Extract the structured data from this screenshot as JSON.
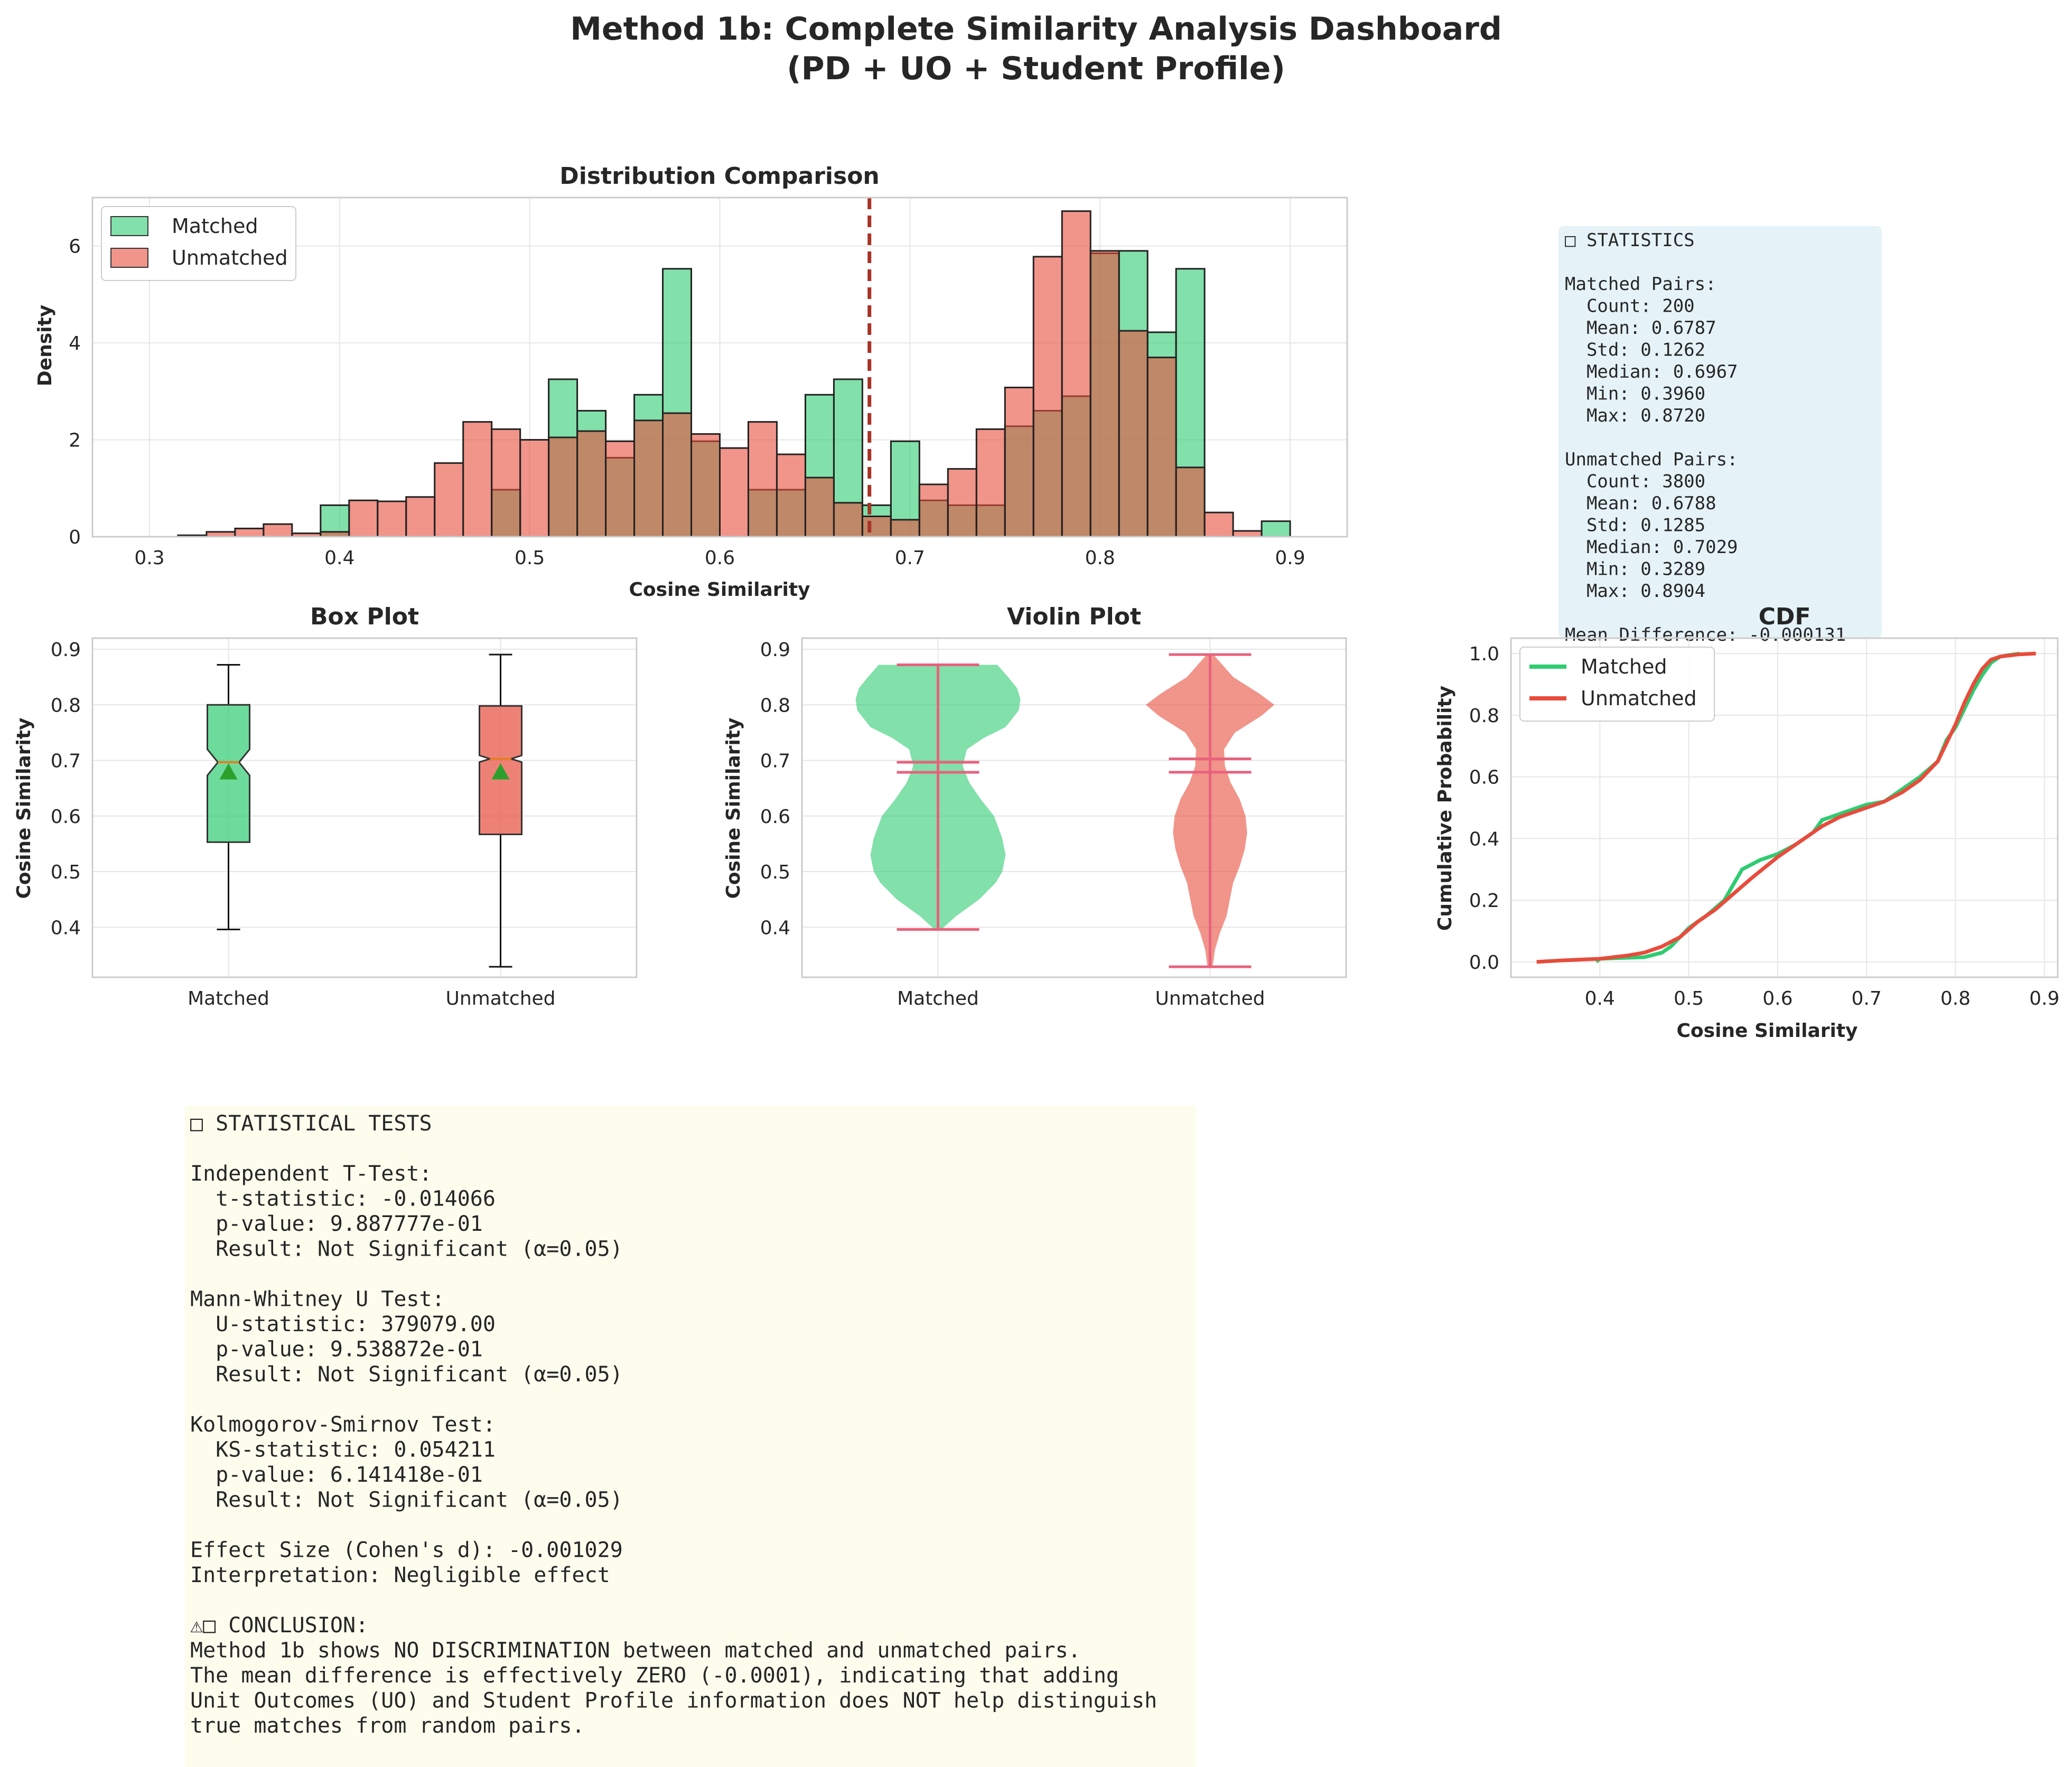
{
  "title_lines": [
    "Method 1b: Complete Similarity Analysis Dashboard",
    "(PD + UO + Student Profile)"
  ],
  "colors": {
    "matched": "#2ecc71",
    "unmatched": "#e74c3c",
    "mean_line": "#a93226",
    "violin_lines": "#e8627d",
    "box_mean_marker": "#2ca02c",
    "box_median": "#e67e22",
    "stats_bg": "#e5f3f8",
    "tests_bg": "#fdfdee"
  },
  "statistics_box": {
    "lines": [
      "□ STATISTICS",
      "",
      "Matched Pairs:",
      "  Count: 200",
      "  Mean: 0.6787",
      "  Std: 0.1262",
      "  Median: 0.6967",
      "  Min: 0.3960",
      "  Max: 0.8720",
      "",
      "Unmatched Pairs:",
      "  Count: 3800",
      "  Mean: 0.6788",
      "  Std: 0.1285",
      "  Median: 0.7029",
      "  Min: 0.3289",
      "  Max: 0.8904",
      "",
      "Mean Difference: -0.000131"
    ]
  },
  "tests_box": {
    "lines": [
      "□ STATISTICAL TESTS",
      "",
      "Independent T-Test:",
      "  t-statistic: -0.014066",
      "  p-value: 9.887777e-01",
      "  Result: Not Significant (α=0.05)",
      "",
      "Mann-Whitney U Test:",
      "  U-statistic: 379079.00",
      "  p-value: 9.538872e-01",
      "  Result: Not Significant (α=0.05)",
      "",
      "Kolmogorov-Smirnov Test:",
      "  KS-statistic: 0.054211",
      "  p-value: 6.141418e-01",
      "  Result: Not Significant (α=0.05)",
      "",
      "Effect Size (Cohen's d): -0.001029",
      "Interpretation: Negligible effect",
      "",
      "⚠□ CONCLUSION:",
      "Method 1b shows NO DISCRIMINATION between matched and unmatched pairs.",
      "The mean difference is effectively ZERO (-0.0001), indicating that adding",
      "Unit Outcomes (UO) and Student Profile information does NOT help distinguish",
      "true matches from random pairs."
    ]
  },
  "chart_data": [
    {
      "type": "histogram",
      "title": "Distribution Comparison",
      "xlabel": "Cosine Similarity",
      "ylabel": "Density",
      "xlim": [
        0.27,
        0.93
      ],
      "ylim": [
        0,
        7.0
      ],
      "xticks": [
        0.3,
        0.4,
        0.5,
        0.6,
        0.7,
        0.8,
        0.9
      ],
      "xtick_labels": [
        "0.3",
        "0.4",
        "0.5",
        "0.6",
        "0.7",
        "0.8",
        "0.9"
      ],
      "yticks": [
        0,
        2,
        4,
        6
      ],
      "ytick_labels": [
        "0",
        "2",
        "4",
        "6"
      ],
      "legend_position": "upper-left",
      "bin_start": 0.3,
      "bin_width": 0.015,
      "series": [
        {
          "name": "Matched",
          "values": [
            0,
            0,
            0,
            0,
            0,
            0,
            0.65,
            0,
            0,
            0,
            0,
            0,
            0.97,
            0,
            3.25,
            2.6,
            1.63,
            2.93,
            5.53,
            1.97,
            0,
            0.97,
            0.97,
            2.93,
            3.25,
            0.65,
            1.97,
            0.75,
            0.65,
            0.65,
            2.28,
            2.6,
            2.9,
            5.85,
            5.9,
            4.22,
            5.53,
            0,
            0,
            0.32,
            0
          ]
        },
        {
          "name": "Unmatched",
          "values": [
            0,
            0.03,
            0.1,
            0.17,
            0.26,
            0.07,
            0.1,
            0.75,
            0.73,
            0.82,
            1.52,
            2.37,
            2.22,
            2.0,
            2.05,
            2.18,
            1.97,
            2.4,
            2.55,
            2.12,
            1.83,
            2.37,
            1.7,
            1.22,
            0.7,
            0.42,
            0.35,
            1.08,
            1.4,
            2.22,
            3.08,
            5.78,
            6.72,
            5.9,
            4.25,
            3.7,
            1.43,
            0.5,
            0.12,
            0,
            0
          ]
        }
      ],
      "mean_line_x": 0.6787
    },
    {
      "type": "box",
      "title": "Box Plot",
      "ylabel": "Cosine Similarity",
      "ylim": [
        0.31,
        0.92
      ],
      "yticks": [
        0.4,
        0.5,
        0.6,
        0.7,
        0.8,
        0.9
      ],
      "ytick_labels": [
        "0.4",
        "0.5",
        "0.6",
        "0.7",
        "0.8",
        "0.9"
      ],
      "categories": [
        "Matched",
        "Unmatched"
      ],
      "boxes": [
        {
          "q1": 0.553,
          "median": 0.6967,
          "q3": 0.8,
          "whisker_low": 0.396,
          "whisker_high": 0.872,
          "mean": 0.6787,
          "notch_low": 0.673,
          "notch_high": 0.72
        },
        {
          "q1": 0.567,
          "median": 0.7029,
          "q3": 0.798,
          "whisker_low": 0.3289,
          "whisker_high": 0.8904,
          "mean": 0.6788,
          "notch_low": 0.697,
          "notch_high": 0.709
        }
      ]
    },
    {
      "type": "violin",
      "title": "Violin Plot",
      "ylabel": "Cosine Similarity",
      "ylim": [
        0.31,
        0.92
      ],
      "yticks": [
        0.4,
        0.5,
        0.6,
        0.7,
        0.8,
        0.9
      ],
      "ytick_labels": [
        "0.4",
        "0.5",
        "0.6",
        "0.7",
        "0.8",
        "0.9"
      ],
      "categories": [
        "Matched",
        "Unmatched"
      ],
      "violins": [
        {
          "min": 0.396,
          "max": 0.872,
          "mean": 0.6787,
          "median": 0.6967,
          "profile_y": [
            0.396,
            0.42,
            0.45,
            0.48,
            0.5,
            0.53,
            0.56,
            0.6,
            0.63,
            0.66,
            0.69,
            0.72,
            0.74,
            0.76,
            0.79,
            0.81,
            0.83,
            0.85,
            0.872
          ],
          "profile_w": [
            0.04,
            0.22,
            0.5,
            0.7,
            0.78,
            0.82,
            0.78,
            0.68,
            0.52,
            0.38,
            0.3,
            0.35,
            0.55,
            0.82,
            0.98,
            1.0,
            0.96,
            0.85,
            0.72
          ]
        },
        {
          "min": 0.3289,
          "max": 0.8904,
          "mean": 0.6788,
          "median": 0.7029,
          "profile_y": [
            0.3289,
            0.36,
            0.39,
            0.42,
            0.45,
            0.48,
            0.51,
            0.54,
            0.57,
            0.6,
            0.63,
            0.66,
            0.69,
            0.72,
            0.75,
            0.78,
            0.8,
            0.82,
            0.85,
            0.8904
          ],
          "profile_w": [
            0.03,
            0.06,
            0.12,
            0.2,
            0.24,
            0.28,
            0.36,
            0.42,
            0.45,
            0.43,
            0.36,
            0.25,
            0.18,
            0.17,
            0.3,
            0.62,
            0.78,
            0.6,
            0.28,
            0.04
          ]
        }
      ]
    },
    {
      "type": "line",
      "title": "CDF",
      "xlabel": "Cosine Similarity",
      "ylabel": "Cumulative Probability",
      "xlim": [
        0.3,
        0.915
      ],
      "ylim": [
        -0.05,
        1.05
      ],
      "xticks": [
        0.4,
        0.5,
        0.6,
        0.7,
        0.8,
        0.9
      ],
      "xtick_labels": [
        "0.4",
        "0.5",
        "0.6",
        "0.7",
        "0.8",
        "0.9"
      ],
      "yticks": [
        0.0,
        0.2,
        0.4,
        0.6,
        0.8,
        1.0
      ],
      "ytick_labels": [
        "0.0",
        "0.2",
        "0.4",
        "0.6",
        "0.8",
        "1.0"
      ],
      "legend_position": "upper-left",
      "series": [
        {
          "name": "Matched",
          "x": [
            0.396,
            0.4,
            0.45,
            0.47,
            0.48,
            0.49,
            0.5,
            0.52,
            0.54,
            0.55,
            0.56,
            0.58,
            0.6,
            0.62,
            0.64,
            0.65,
            0.66,
            0.68,
            0.7,
            0.72,
            0.74,
            0.76,
            0.78,
            0.79,
            0.8,
            0.81,
            0.82,
            0.83,
            0.84,
            0.85,
            0.86,
            0.872
          ],
          "y": [
            0.0,
            0.01,
            0.015,
            0.03,
            0.05,
            0.08,
            0.11,
            0.15,
            0.2,
            0.25,
            0.3,
            0.33,
            0.35,
            0.38,
            0.42,
            0.46,
            0.47,
            0.49,
            0.51,
            0.52,
            0.56,
            0.6,
            0.65,
            0.72,
            0.76,
            0.82,
            0.88,
            0.93,
            0.97,
            0.99,
            0.995,
            1.0
          ]
        },
        {
          "name": "Unmatched",
          "x": [
            0.3289,
            0.36,
            0.4,
            0.43,
            0.45,
            0.47,
            0.49,
            0.51,
            0.53,
            0.55,
            0.57,
            0.6,
            0.63,
            0.65,
            0.67,
            0.7,
            0.72,
            0.74,
            0.76,
            0.78,
            0.79,
            0.8,
            0.81,
            0.82,
            0.83,
            0.84,
            0.85,
            0.87,
            0.8904
          ],
          "y": [
            0.0,
            0.005,
            0.01,
            0.02,
            0.03,
            0.05,
            0.08,
            0.13,
            0.17,
            0.22,
            0.27,
            0.34,
            0.4,
            0.44,
            0.47,
            0.5,
            0.52,
            0.55,
            0.59,
            0.65,
            0.71,
            0.77,
            0.84,
            0.9,
            0.95,
            0.98,
            0.99,
            0.997,
            1.0
          ]
        }
      ]
    }
  ]
}
